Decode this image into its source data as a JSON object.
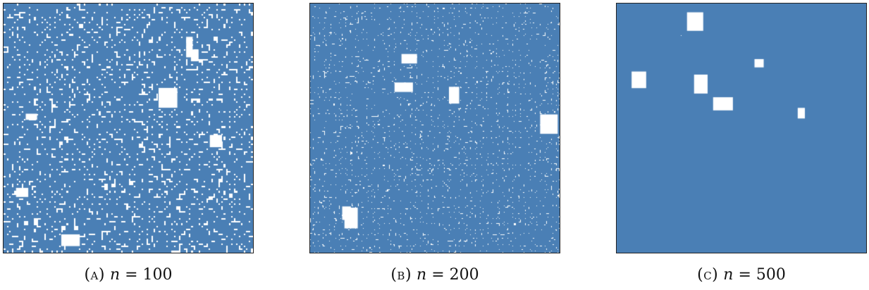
{
  "colors": {
    "fill": "#4a7fb5",
    "hole": "#ffffff",
    "border": "#222222",
    "marker": "#2e7d32"
  },
  "panels": [
    {
      "label": "(a)",
      "var": "n",
      "eq": "=",
      "value": "100",
      "n": 100,
      "fill_fraction": 0.8,
      "seed": 11
    },
    {
      "label": "(b)",
      "var": "n",
      "eq": "=",
      "value": "200",
      "n": 200,
      "fill_fraction": 0.83,
      "seed": 23
    },
    {
      "label": "(c)",
      "var": "n",
      "eq": "=",
      "value": "500",
      "n": 500,
      "fill_fraction": 0.86,
      "seed": 37
    }
  ]
}
